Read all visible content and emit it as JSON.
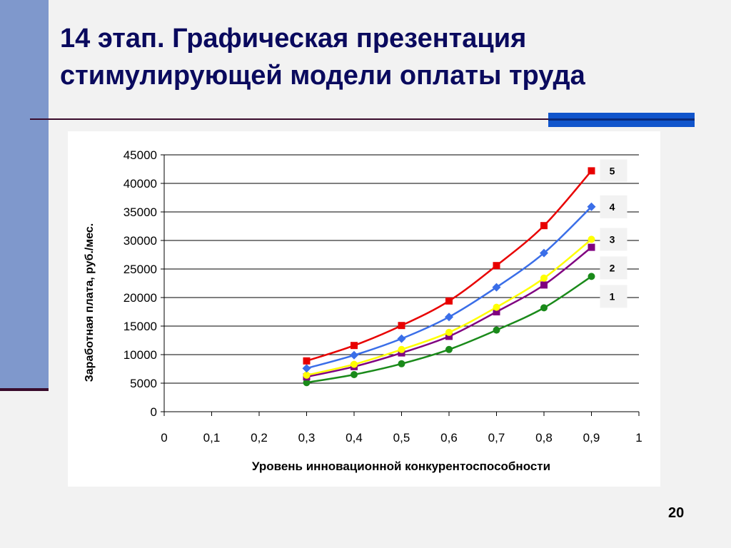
{
  "slide": {
    "title": "14 этап. Графическая презентация стимулирующей модели оплаты труда",
    "page_number": "20"
  },
  "colors": {
    "sidebar": "#7f98cc",
    "accent": "#1155cc",
    "title_text": "#0a0a5e",
    "rule": "#3a0c2c"
  },
  "chart_data": {
    "type": "line",
    "xlabel": "Уровень инновационной конкурентоспособности",
    "ylabel": "Заработная плата, руб./мес.",
    "xlim": [
      0,
      1
    ],
    "ylim": [
      0,
      45000
    ],
    "grid": true,
    "x_ticks": [
      {
        "value": 0,
        "label": "0"
      },
      {
        "value": 0.1,
        "label": "0,1"
      },
      {
        "value": 0.2,
        "label": "0,2"
      },
      {
        "value": 0.3,
        "label": "0,3"
      },
      {
        "value": 0.4,
        "label": "0,4"
      },
      {
        "value": 0.5,
        "label": "0,5"
      },
      {
        "value": 0.6,
        "label": "0,6"
      },
      {
        "value": 0.7,
        "label": "0,7"
      },
      {
        "value": 0.8,
        "label": "0,8"
      },
      {
        "value": 0.9,
        "label": "0,9"
      },
      {
        "value": 1,
        "label": "1"
      }
    ],
    "y_ticks": [
      0,
      5000,
      10000,
      15000,
      20000,
      25000,
      30000,
      35000,
      40000,
      45000
    ],
    "x": [
      0.3,
      0.4,
      0.5,
      0.6,
      0.7,
      0.8,
      0.9
    ],
    "series": [
      {
        "name": "1",
        "color": "#1a8a1a",
        "marker": "circle",
        "values": [
          5100,
          6500,
          8400,
          10900,
          14300,
          18200,
          23700
        ]
      },
      {
        "name": "2",
        "color": "#800080",
        "marker": "square",
        "values": [
          6100,
          7900,
          10300,
          13200,
          17500,
          22200,
          28800
        ]
      },
      {
        "name": "3",
        "color": "#ffff00",
        "marker": "circle",
        "values": [
          6400,
          8300,
          10900,
          13900,
          18300,
          23400,
          30200
        ]
      },
      {
        "name": "4",
        "color": "#3a6ee8",
        "marker": "diamond",
        "values": [
          7600,
          9900,
          12800,
          16600,
          21800,
          27800,
          35900
        ]
      },
      {
        "name": "5",
        "color": "#e80000",
        "marker": "square",
        "values": [
          8900,
          11600,
          15100,
          19400,
          25600,
          32600,
          42200
        ]
      }
    ]
  }
}
